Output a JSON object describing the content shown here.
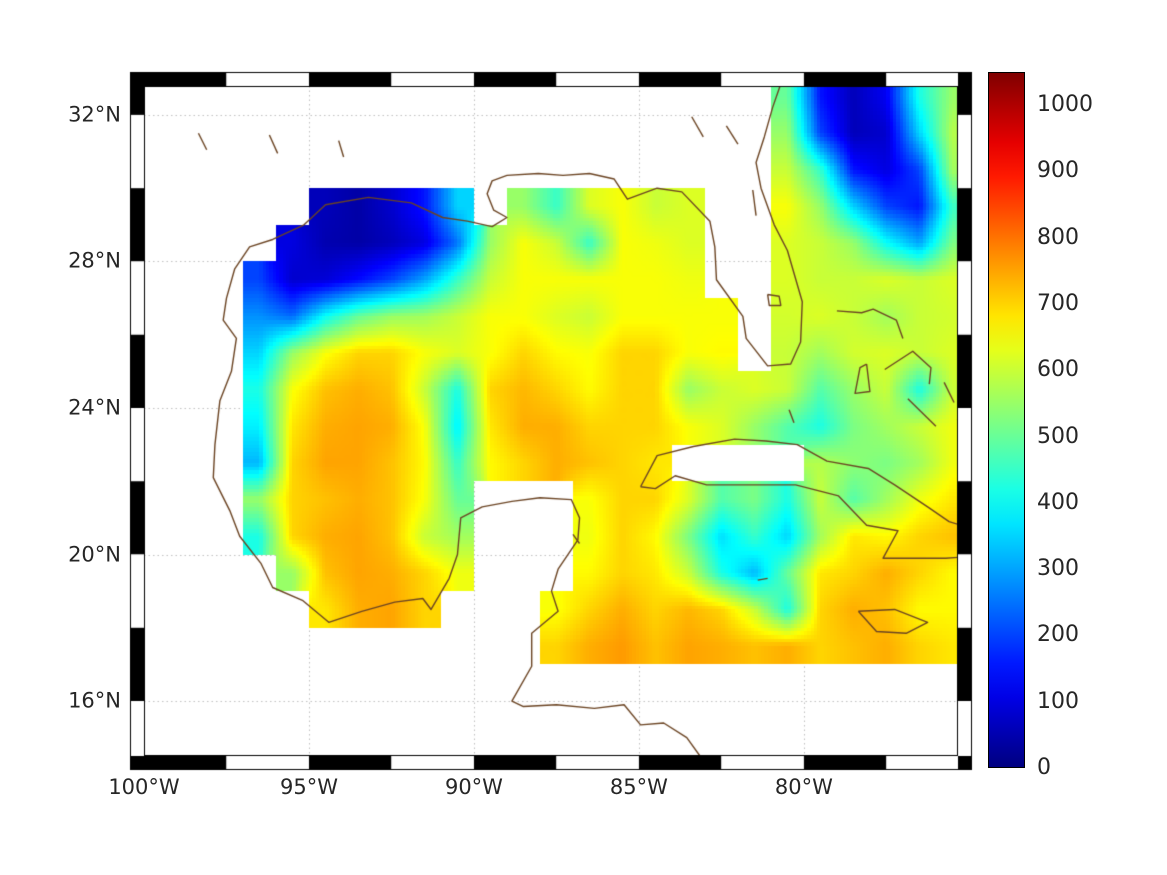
{
  "chart_data": {
    "type": "heatmap",
    "lon_range": [
      -100,
      -75.33
    ],
    "lat_range": [
      14.5,
      32.79
    ],
    "x_ticks": [
      {
        "label": "100°W",
        "lon": -100
      },
      {
        "label": "95°W",
        "lon": -95
      },
      {
        "label": "90°W",
        "lon": -90
      },
      {
        "label": "85°W",
        "lon": -85
      },
      {
        "label": "80°W",
        "lon": -80
      }
    ],
    "y_ticks": [
      {
        "label": "16°N",
        "lat": 16
      },
      {
        "label": "20°N",
        "lat": 20
      },
      {
        "label": "24°N",
        "lat": 24
      },
      {
        "label": "28°N",
        "lat": 28
      },
      {
        "label": "32°N",
        "lat": 32
      }
    ],
    "colorbar": {
      "vmin": 0,
      "vmax": 1050,
      "colormap": "jet",
      "ticks": [
        {
          "label": "0",
          "value": 0
        },
        {
          "label": "100",
          "value": 100
        },
        {
          "label": "200",
          "value": 200
        },
        {
          "label": "300",
          "value": 300
        },
        {
          "label": "400",
          "value": 400
        },
        {
          "label": "500",
          "value": 500
        },
        {
          "label": "600",
          "value": 600
        },
        {
          "label": "700",
          "value": 700
        },
        {
          "label": "800",
          "value": 800
        },
        {
          "label": "900",
          "value": 900
        },
        {
          "label": "1000",
          "value": 1000
        }
      ]
    },
    "grid": {
      "lon_start": -99.5,
      "lon_step": 1,
      "lat_start": 32.5,
      "lat_step": -1,
      "cols": 25,
      "rows": 19
    },
    "values": [
      [
        null,
        null,
        null,
        null,
        null,
        null,
        null,
        null,
        null,
        null,
        null,
        null,
        null,
        null,
        null,
        null,
        null,
        null,
        null,
        500,
        150,
        60,
        120,
        420,
        550
      ],
      [
        null,
        null,
        null,
        null,
        null,
        null,
        null,
        null,
        null,
        null,
        null,
        null,
        null,
        null,
        null,
        null,
        null,
        null,
        null,
        550,
        200,
        60,
        80,
        350,
        580
      ],
      [
        null,
        null,
        null,
        null,
        null,
        null,
        null,
        null,
        null,
        null,
        null,
        null,
        null,
        null,
        null,
        null,
        null,
        null,
        null,
        600,
        450,
        150,
        100,
        200,
        560
      ],
      [
        null,
        null,
        null,
        null,
        null,
        60,
        40,
        80,
        150,
        350,
        null,
        550,
        450,
        620,
        650,
        600,
        620,
        null,
        null,
        650,
        550,
        350,
        200,
        150,
        450
      ],
      [
        null,
        null,
        null,
        null,
        100,
        50,
        40,
        60,
        100,
        250,
        550,
        650,
        600,
        450,
        650,
        640,
        620,
        null,
        null,
        620,
        600,
        550,
        400,
        300,
        520
      ],
      [
        null,
        null,
        null,
        200,
        80,
        90,
        140,
        200,
        300,
        450,
        600,
        650,
        650,
        650,
        650,
        650,
        640,
        null,
        null,
        620,
        600,
        600,
        620,
        600,
        620
      ],
      [
        null,
        null,
        null,
        280,
        240,
        400,
        500,
        550,
        560,
        600,
        650,
        650,
        620,
        600,
        650,
        650,
        650,
        650,
        null,
        610,
        620,
        600,
        560,
        600,
        610
      ],
      [
        null,
        null,
        null,
        350,
        550,
        650,
        700,
        700,
        650,
        620,
        650,
        700,
        660,
        650,
        700,
        700,
        650,
        660,
        null,
        600,
        560,
        610,
        620,
        600,
        620
      ],
      [
        null,
        null,
        null,
        420,
        650,
        720,
        740,
        720,
        600,
        420,
        700,
        730,
        700,
        660,
        700,
        700,
        550,
        600,
        620,
        600,
        480,
        550,
        600,
        420,
        600
      ],
      [
        null,
        null,
        null,
        380,
        680,
        740,
        750,
        740,
        650,
        380,
        680,
        740,
        740,
        700,
        700,
        700,
        650,
        620,
        550,
        480,
        420,
        520,
        560,
        600,
        640
      ],
      [
        null,
        null,
        null,
        320,
        700,
        750,
        750,
        720,
        660,
        450,
        660,
        700,
        740,
        720,
        700,
        680,
        null,
        null,
        null,
        null,
        580,
        540,
        520,
        560,
        640
      ],
      [
        null,
        null,
        null,
        550,
        700,
        720,
        740,
        720,
        650,
        500,
        null,
        null,
        null,
        650,
        700,
        700,
        620,
        480,
        520,
        420,
        600,
        480,
        560,
        640,
        680
      ],
      [
        null,
        null,
        null,
        420,
        700,
        740,
        750,
        720,
        600,
        560,
        null,
        null,
        null,
        640,
        700,
        660,
        520,
        360,
        450,
        350,
        560,
        680,
        660,
        700,
        720
      ],
      [
        null,
        null,
        null,
        null,
        550,
        720,
        750,
        740,
        700,
        640,
        null,
        null,
        null,
        660,
        700,
        680,
        600,
        420,
        320,
        500,
        680,
        700,
        740,
        700,
        660
      ],
      [
        null,
        null,
        null,
        null,
        null,
        680,
        740,
        750,
        700,
        null,
        null,
        null,
        650,
        700,
        740,
        700,
        730,
        700,
        600,
        420,
        700,
        740,
        720,
        660,
        660
      ],
      [
        null,
        null,
        null,
        null,
        null,
        null,
        null,
        null,
        null,
        null,
        null,
        null,
        700,
        740,
        760,
        720,
        750,
        740,
        720,
        740,
        700,
        720,
        740,
        700,
        680
      ],
      [
        null,
        null,
        null,
        null,
        null,
        null,
        null,
        null,
        null,
        null,
        null,
        null,
        null,
        null,
        null,
        null,
        null,
        null,
        null,
        null,
        null,
        null,
        null,
        null,
        null
      ],
      [
        null,
        null,
        null,
        null,
        null,
        null,
        null,
        null,
        null,
        null,
        null,
        null,
        null,
        null,
        null,
        null,
        null,
        null,
        null,
        null,
        null,
        null,
        null,
        null,
        null
      ],
      [
        null,
        null,
        null,
        null,
        null,
        null,
        null,
        null,
        null,
        null,
        null,
        null,
        null,
        null,
        null,
        null,
        null,
        null,
        null,
        null,
        null,
        null,
        null,
        null,
        null
      ]
    ],
    "coastlines": [
      [
        [
          -80.7,
          32.85
        ],
        [
          -80.95,
          32.2
        ],
        [
          -81.2,
          31.4
        ],
        [
          -81.45,
          30.7
        ],
        [
          -81.3,
          30.0
        ],
        [
          -80.9,
          29.0
        ],
        [
          -80.5,
          28.3
        ],
        [
          -80.05,
          26.9
        ],
        [
          -80.1,
          25.8
        ],
        [
          -80.4,
          25.2
        ],
        [
          -81.1,
          25.15
        ],
        [
          -81.75,
          25.9
        ],
        [
          -81.85,
          26.5
        ],
        [
          -82.65,
          27.5
        ],
        [
          -82.7,
          28.4
        ],
        [
          -82.85,
          29.1
        ],
        [
          -83.7,
          29.9
        ],
        [
          -84.45,
          30.0
        ],
        [
          -85.35,
          29.7
        ],
        [
          -85.75,
          30.25
        ],
        [
          -86.5,
          30.4
        ],
        [
          -87.3,
          30.35
        ],
        [
          -88.05,
          30.4
        ],
        [
          -89.0,
          30.35
        ],
        [
          -89.45,
          30.2
        ],
        [
          -89.6,
          29.85
        ],
        [
          -89.4,
          29.4
        ],
        [
          -89.0,
          29.2
        ],
        [
          -89.45,
          28.95
        ],
        [
          -90.2,
          29.1
        ],
        [
          -90.95,
          29.2
        ],
        [
          -91.9,
          29.6
        ],
        [
          -93.2,
          29.75
        ],
        [
          -94.5,
          29.55
        ],
        [
          -95.15,
          29.0
        ],
        [
          -96.1,
          28.6
        ],
        [
          -96.8,
          28.4
        ],
        [
          -97.25,
          27.8
        ],
        [
          -97.5,
          27.0
        ],
        [
          -97.6,
          26.4
        ],
        [
          -97.2,
          25.9
        ],
        [
          -97.35,
          25.0
        ],
        [
          -97.7,
          24.2
        ],
        [
          -97.85,
          23.0
        ],
        [
          -97.9,
          22.1
        ],
        [
          -97.4,
          21.2
        ],
        [
          -97.1,
          20.5
        ],
        [
          -96.45,
          19.75
        ],
        [
          -96.1,
          19.1
        ],
        [
          -95.2,
          18.75
        ],
        [
          -94.4,
          18.15
        ],
        [
          -93.4,
          18.45
        ],
        [
          -92.4,
          18.7
        ],
        [
          -91.55,
          18.8
        ],
        [
          -91.3,
          18.5
        ],
        [
          -90.75,
          19.35
        ],
        [
          -90.5,
          20.0
        ],
        [
          -90.4,
          21.0
        ],
        [
          -89.75,
          21.3
        ],
        [
          -88.85,
          21.45
        ],
        [
          -88.0,
          21.55
        ],
        [
          -87.05,
          21.5
        ],
        [
          -86.8,
          21.0
        ],
        [
          -86.85,
          20.4
        ],
        [
          -87.45,
          19.6
        ],
        [
          -87.65,
          19.0
        ],
        [
          -87.45,
          18.45
        ],
        [
          -88.25,
          17.85
        ],
        [
          -88.25,
          16.95
        ],
        [
          -88.85,
          16.0
        ],
        [
          -88.5,
          15.85
        ],
        [
          -87.5,
          15.9
        ],
        [
          -86.35,
          15.8
        ],
        [
          -85.45,
          15.9
        ],
        [
          -84.95,
          15.35
        ],
        [
          -84.25,
          15.4
        ],
        [
          -83.55,
          15.0
        ],
        [
          -83.15,
          14.5
        ]
      ],
      [
        [
          -84.95,
          21.85
        ],
        [
          -84.45,
          22.7
        ],
        [
          -83.35,
          22.95
        ],
        [
          -82.1,
          23.15
        ],
        [
          -81.15,
          23.1
        ],
        [
          -80.2,
          23.0
        ],
        [
          -79.3,
          22.55
        ],
        [
          -78.05,
          22.35
        ],
        [
          -77.25,
          21.9
        ],
        [
          -76.25,
          21.3
        ],
        [
          -75.6,
          20.9
        ],
        [
          -74.9,
          20.7
        ],
        [
          -74.15,
          20.2
        ],
        [
          -74.85,
          19.95
        ],
        [
          -75.7,
          19.9
        ],
        [
          -77.6,
          19.9
        ],
        [
          -77.15,
          20.65
        ],
        [
          -78.1,
          20.8
        ],
        [
          -78.95,
          21.6
        ],
        [
          -80.25,
          21.9
        ],
        [
          -81.85,
          21.9
        ],
        [
          -82.95,
          21.9
        ],
        [
          -83.9,
          22.15
        ],
        [
          -84.5,
          21.8
        ],
        [
          -84.95,
          21.85
        ]
      ],
      [
        [
          -78.35,
          18.45
        ],
        [
          -77.25,
          18.5
        ],
        [
          -76.25,
          18.15
        ],
        [
          -76.9,
          17.85
        ],
        [
          -77.8,
          17.9
        ],
        [
          -78.35,
          18.45
        ]
      ],
      [
        [
          -79.0,
          26.65
        ],
        [
          -78.25,
          26.6
        ],
        [
          -77.9,
          26.7
        ],
        [
          -77.2,
          26.4
        ],
        [
          -77.0,
          25.9
        ]
      ],
      [
        [
          -78.1,
          25.2
        ],
        [
          -78.0,
          24.45
        ],
        [
          -78.45,
          24.4
        ],
        [
          -78.3,
          25.1
        ],
        [
          -78.1,
          25.2
        ]
      ],
      [
        [
          -77.55,
          25.05
        ],
        [
          -76.7,
          25.55
        ],
        [
          -76.15,
          25.1
        ],
        [
          -76.2,
          24.65
        ]
      ],
      [
        [
          -76.85,
          24.25
        ],
        [
          -76.0,
          23.5
        ]
      ],
      [
        [
          -75.35,
          23.7
        ],
        [
          -74.95,
          23.1
        ]
      ],
      [
        [
          -75.75,
          24.7
        ],
        [
          -75.45,
          24.15
        ]
      ],
      [
        [
          -80.45,
          23.95
        ],
        [
          -80.3,
          23.6
        ]
      ],
      [
        [
          -81.4,
          19.3
        ],
        [
          -81.1,
          19.35
        ]
      ],
      [
        [
          -87.0,
          20.55
        ],
        [
          -86.8,
          20.3
        ]
      ],
      [
        [
          -81.1,
          27.1
        ],
        [
          -80.75,
          27.05
        ],
        [
          -80.7,
          26.8
        ],
        [
          -81.05,
          26.8
        ],
        [
          -81.1,
          27.1
        ]
      ],
      [
        [
          -98.35,
          31.5
        ],
        [
          -98.1,
          31.05
        ]
      ],
      [
        [
          -96.2,
          31.45
        ],
        [
          -95.95,
          30.95
        ]
      ],
      [
        [
          -94.1,
          31.3
        ],
        [
          -93.95,
          30.85
        ]
      ],
      [
        [
          -83.4,
          31.95
        ],
        [
          -83.05,
          31.4
        ]
      ],
      [
        [
          -82.35,
          31.7
        ],
        [
          -82.0,
          31.2
        ]
      ],
      [
        [
          -81.55,
          29.95
        ],
        [
          -81.45,
          29.25
        ]
      ]
    ],
    "colors": {
      "coastline": "#6b4423",
      "gridline": "#c0c0c0",
      "frame": "#000000",
      "background": "#ffffff",
      "tick_label": "#262626"
    }
  }
}
